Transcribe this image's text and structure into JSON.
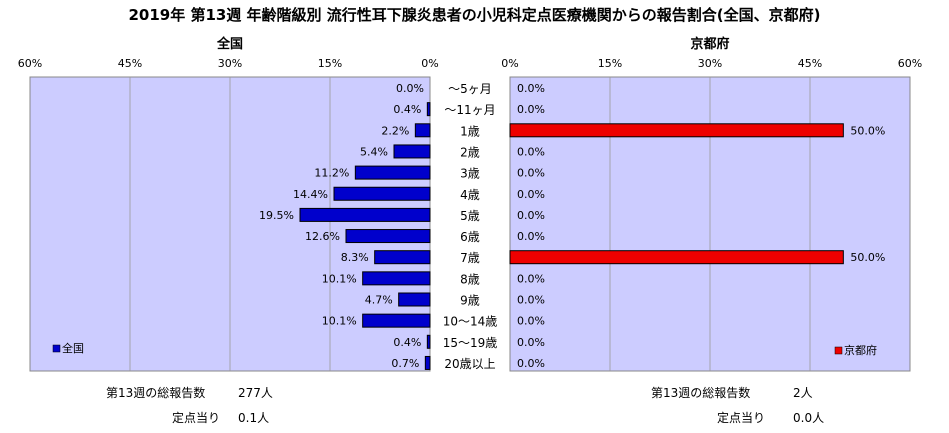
{
  "title": "2019年 第13週 年齢階級別 流行性耳下腺炎患者の小児科定点医療機関からの報告割合(全国、京都府)",
  "colors": {
    "plot_bg": "#ccccff",
    "national_bar": "#0000cc",
    "kyoto_bar": "#ee0000",
    "grid": "#999999"
  },
  "chart_data": [
    {
      "type": "bar",
      "orientation": "horizontal",
      "direction": "right-to-left",
      "title": "全国",
      "legend": "全国",
      "legend_position": "bottom-left",
      "xlim": [
        0,
        60
      ],
      "ticks": [
        0,
        15,
        30,
        45,
        60
      ],
      "tick_labels": [
        "0%",
        "15%",
        "30%",
        "45%",
        "60%"
      ],
      "categories": [
        "～5ヶ月",
        "～11ヶ月",
        "1歳",
        "2歳",
        "3歳",
        "4歳",
        "5歳",
        "6歳",
        "7歳",
        "8歳",
        "9歳",
        "10～14歳",
        "15～19歳",
        "20歳以上"
      ],
      "values": [
        0.0,
        0.4,
        2.2,
        5.4,
        11.2,
        14.4,
        19.5,
        12.6,
        8.3,
        10.1,
        4.7,
        10.1,
        0.4,
        0.7
      ],
      "value_labels": [
        "0.0%",
        "0.4%",
        "2.2%",
        "5.4%",
        "11.2%",
        "14.4%",
        "19.5%",
        "12.6%",
        "8.3%",
        "10.1%",
        "4.7%",
        "10.1%",
        "0.4%",
        "0.7%"
      ],
      "grid": true
    },
    {
      "type": "bar",
      "orientation": "horizontal",
      "direction": "left-to-right",
      "title": "京都府",
      "legend": "京都府",
      "legend_position": "bottom-right",
      "xlim": [
        0,
        60
      ],
      "ticks": [
        0,
        15,
        30,
        45,
        60
      ],
      "tick_labels": [
        "0%",
        "15%",
        "30%",
        "45%",
        "60%"
      ],
      "categories": [
        "～5ヶ月",
        "～11ヶ月",
        "1歳",
        "2歳",
        "3歳",
        "4歳",
        "5歳",
        "6歳",
        "7歳",
        "8歳",
        "9歳",
        "10～14歳",
        "15～19歳",
        "20歳以上"
      ],
      "values": [
        0.0,
        0.0,
        50.0,
        0.0,
        0.0,
        0.0,
        0.0,
        0.0,
        50.0,
        0.0,
        0.0,
        0.0,
        0.0,
        0.0
      ],
      "value_labels": [
        "0.0%",
        "0.0%",
        "50.0%",
        "0.0%",
        "0.0%",
        "0.0%",
        "0.0%",
        "0.0%",
        "50.0%",
        "0.0%",
        "0.0%",
        "0.0%",
        "0.0%",
        "0.0%"
      ],
      "grid": true
    }
  ],
  "footer": {
    "national": {
      "total_label": "第13週の総報告数",
      "total_value": "277人",
      "per_label": "定点当り",
      "per_value": "0.1人"
    },
    "kyoto": {
      "total_label": "第13週の総報告数",
      "total_value": "2人",
      "per_label": "定点当り",
      "per_value": "0.0人"
    }
  }
}
